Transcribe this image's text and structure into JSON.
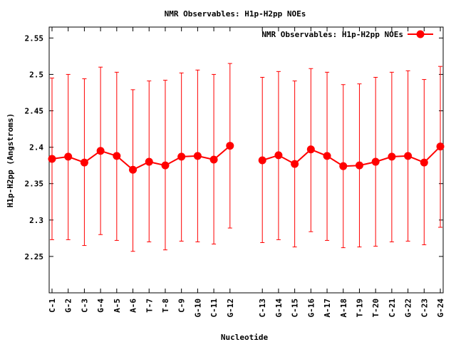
{
  "chart_data": {
    "type": "line",
    "title": "NMR Observables: H1p-H2pp NOEs",
    "xlabel": "Nucleotide",
    "ylabel": "H1p-H2pp (Angstroms)",
    "ylim": [
      2.2,
      2.565
    ],
    "yticks": [
      2.25,
      2.3,
      2.35,
      2.4,
      2.45,
      2.5,
      2.55
    ],
    "ytick_labels": [
      "2.25",
      "2.3",
      "2.35",
      "2.4",
      "2.45",
      "2.5",
      "2.55"
    ],
    "grid": false,
    "legend_position": "top-right",
    "color": "#ff0000",
    "gap_after_index": 11,
    "series": [
      {
        "name": "NMR Observables: H1p-H2pp NOEs",
        "categories": [
          "C-1",
          "G-2",
          "C-3",
          "G-4",
          "A-5",
          "A-6",
          "T-7",
          "T-8",
          "C-9",
          "G-10",
          "C-11",
          "G-12",
          "C-13",
          "G-14",
          "C-15",
          "G-16",
          "A-17",
          "A-18",
          "T-19",
          "T-20",
          "C-21",
          "G-22",
          "C-23",
          "G-24"
        ],
        "values": [
          2.384,
          2.387,
          2.379,
          2.395,
          2.388,
          2.369,
          2.38,
          2.375,
          2.387,
          2.388,
          2.383,
          2.402,
          2.382,
          2.389,
          2.377,
          2.397,
          2.388,
          2.374,
          2.375,
          2.38,
          2.387,
          2.388,
          2.379,
          2.401
        ],
        "err_low": [
          2.273,
          2.273,
          2.265,
          2.28,
          2.272,
          2.257,
          2.27,
          2.259,
          2.271,
          2.27,
          2.267,
          2.289,
          2.269,
          2.273,
          2.263,
          2.284,
          2.272,
          2.262,
          2.263,
          2.264,
          2.27,
          2.271,
          2.266,
          2.29
        ],
        "err_high": [
          2.495,
          2.5,
          2.494,
          2.51,
          2.503,
          2.479,
          2.491,
          2.492,
          2.502,
          2.506,
          2.5,
          2.515,
          2.496,
          2.504,
          2.491,
          2.508,
          2.503,
          2.486,
          2.487,
          2.496,
          2.503,
          2.505,
          2.493,
          2.511
        ]
      }
    ]
  }
}
